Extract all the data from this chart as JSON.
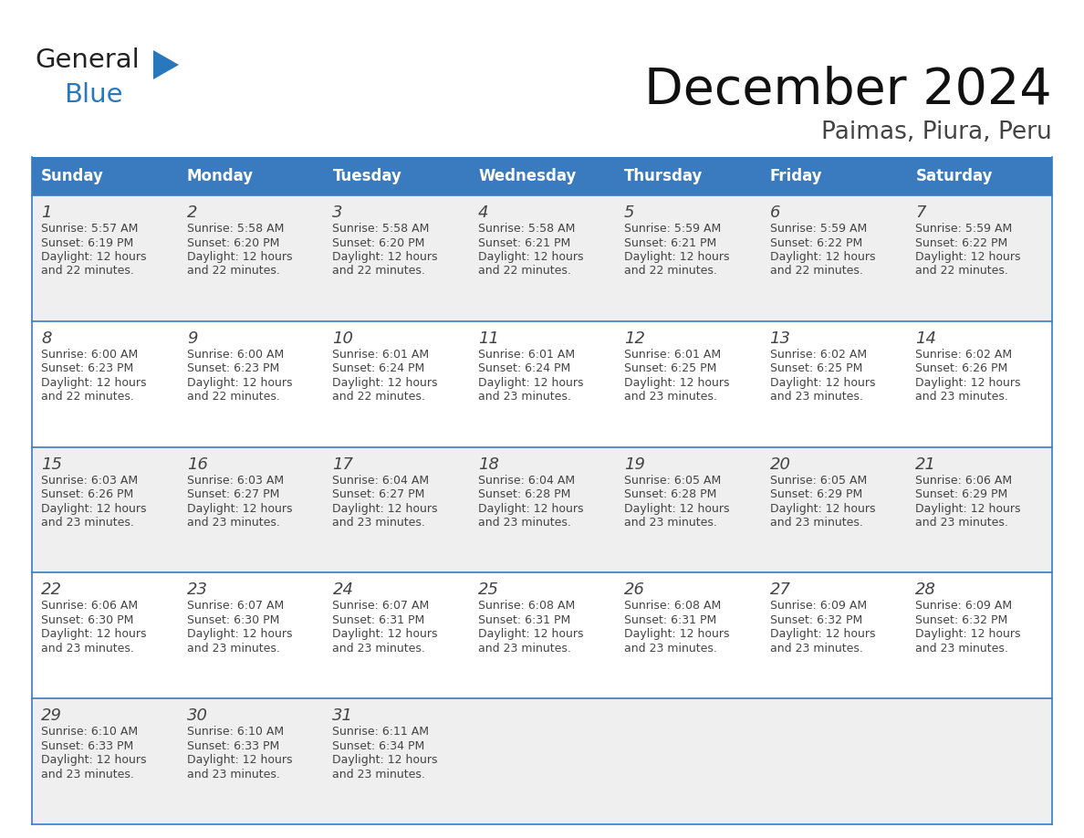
{
  "title": "December 2024",
  "subtitle": "Paimas, Piura, Peru",
  "header_bg_color": "#3a7bbf",
  "header_text_color": "#ffffff",
  "cell_bg_color_odd": "#efefef",
  "cell_bg_color_even": "#ffffff",
  "border_color": "#3a7bbf",
  "text_color": "#444444",
  "days_of_week": [
    "Sunday",
    "Monday",
    "Tuesday",
    "Wednesday",
    "Thursday",
    "Friday",
    "Saturday"
  ],
  "logo_general_color": "#222222",
  "logo_blue_color": "#2878be",
  "weeks": [
    [
      {
        "day": 1,
        "sunrise": "5:57 AM",
        "sunset": "6:19 PM",
        "daylight_hrs": 12,
        "daylight_min": 22
      },
      {
        "day": 2,
        "sunrise": "5:58 AM",
        "sunset": "6:20 PM",
        "daylight_hrs": 12,
        "daylight_min": 22
      },
      {
        "day": 3,
        "sunrise": "5:58 AM",
        "sunset": "6:20 PM",
        "daylight_hrs": 12,
        "daylight_min": 22
      },
      {
        "day": 4,
        "sunrise": "5:58 AM",
        "sunset": "6:21 PM",
        "daylight_hrs": 12,
        "daylight_min": 22
      },
      {
        "day": 5,
        "sunrise": "5:59 AM",
        "sunset": "6:21 PM",
        "daylight_hrs": 12,
        "daylight_min": 22
      },
      {
        "day": 6,
        "sunrise": "5:59 AM",
        "sunset": "6:22 PM",
        "daylight_hrs": 12,
        "daylight_min": 22
      },
      {
        "day": 7,
        "sunrise": "5:59 AM",
        "sunset": "6:22 PM",
        "daylight_hrs": 12,
        "daylight_min": 22
      }
    ],
    [
      {
        "day": 8,
        "sunrise": "6:00 AM",
        "sunset": "6:23 PM",
        "daylight_hrs": 12,
        "daylight_min": 22
      },
      {
        "day": 9,
        "sunrise": "6:00 AM",
        "sunset": "6:23 PM",
        "daylight_hrs": 12,
        "daylight_min": 22
      },
      {
        "day": 10,
        "sunrise": "6:01 AM",
        "sunset": "6:24 PM",
        "daylight_hrs": 12,
        "daylight_min": 22
      },
      {
        "day": 11,
        "sunrise": "6:01 AM",
        "sunset": "6:24 PM",
        "daylight_hrs": 12,
        "daylight_min": 23
      },
      {
        "day": 12,
        "sunrise": "6:01 AM",
        "sunset": "6:25 PM",
        "daylight_hrs": 12,
        "daylight_min": 23
      },
      {
        "day": 13,
        "sunrise": "6:02 AM",
        "sunset": "6:25 PM",
        "daylight_hrs": 12,
        "daylight_min": 23
      },
      {
        "day": 14,
        "sunrise": "6:02 AM",
        "sunset": "6:26 PM",
        "daylight_hrs": 12,
        "daylight_min": 23
      }
    ],
    [
      {
        "day": 15,
        "sunrise": "6:03 AM",
        "sunset": "6:26 PM",
        "daylight_hrs": 12,
        "daylight_min": 23
      },
      {
        "day": 16,
        "sunrise": "6:03 AM",
        "sunset": "6:27 PM",
        "daylight_hrs": 12,
        "daylight_min": 23
      },
      {
        "day": 17,
        "sunrise": "6:04 AM",
        "sunset": "6:27 PM",
        "daylight_hrs": 12,
        "daylight_min": 23
      },
      {
        "day": 18,
        "sunrise": "6:04 AM",
        "sunset": "6:28 PM",
        "daylight_hrs": 12,
        "daylight_min": 23
      },
      {
        "day": 19,
        "sunrise": "6:05 AM",
        "sunset": "6:28 PM",
        "daylight_hrs": 12,
        "daylight_min": 23
      },
      {
        "day": 20,
        "sunrise": "6:05 AM",
        "sunset": "6:29 PM",
        "daylight_hrs": 12,
        "daylight_min": 23
      },
      {
        "day": 21,
        "sunrise": "6:06 AM",
        "sunset": "6:29 PM",
        "daylight_hrs": 12,
        "daylight_min": 23
      }
    ],
    [
      {
        "day": 22,
        "sunrise": "6:06 AM",
        "sunset": "6:30 PM",
        "daylight_hrs": 12,
        "daylight_min": 23
      },
      {
        "day": 23,
        "sunrise": "6:07 AM",
        "sunset": "6:30 PM",
        "daylight_hrs": 12,
        "daylight_min": 23
      },
      {
        "day": 24,
        "sunrise": "6:07 AM",
        "sunset": "6:31 PM",
        "daylight_hrs": 12,
        "daylight_min": 23
      },
      {
        "day": 25,
        "sunrise": "6:08 AM",
        "sunset": "6:31 PM",
        "daylight_hrs": 12,
        "daylight_min": 23
      },
      {
        "day": 26,
        "sunrise": "6:08 AM",
        "sunset": "6:31 PM",
        "daylight_hrs": 12,
        "daylight_min": 23
      },
      {
        "day": 27,
        "sunrise": "6:09 AM",
        "sunset": "6:32 PM",
        "daylight_hrs": 12,
        "daylight_min": 23
      },
      {
        "day": 28,
        "sunrise": "6:09 AM",
        "sunset": "6:32 PM",
        "daylight_hrs": 12,
        "daylight_min": 23
      }
    ],
    [
      {
        "day": 29,
        "sunrise": "6:10 AM",
        "sunset": "6:33 PM",
        "daylight_hrs": 12,
        "daylight_min": 23
      },
      {
        "day": 30,
        "sunrise": "6:10 AM",
        "sunset": "6:33 PM",
        "daylight_hrs": 12,
        "daylight_min": 23
      },
      {
        "day": 31,
        "sunrise": "6:11 AM",
        "sunset": "6:34 PM",
        "daylight_hrs": 12,
        "daylight_min": 23
      },
      null,
      null,
      null,
      null
    ]
  ]
}
